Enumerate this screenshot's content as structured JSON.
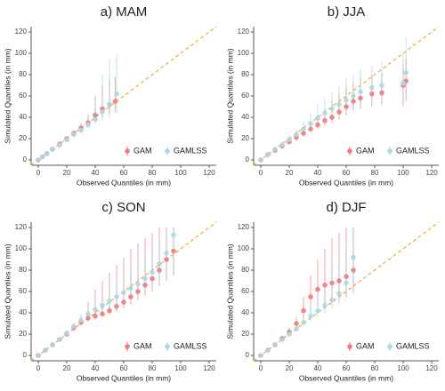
{
  "chart_data": [
    {
      "type": "scatter",
      "title": "a) MAM",
      "xlabel": "Observed Quantiles (in mm)",
      "ylabel": "Simulated Quantiles (in mm)",
      "xlim": [
        -5,
        125
      ],
      "ylim": [
        -5,
        125
      ],
      "xticks": [
        0,
        20,
        40,
        60,
        80,
        100,
        120
      ],
      "yticks": [
        0,
        20,
        40,
        60,
        80,
        100,
        120
      ],
      "diagonal": true,
      "diagonal_color": "#f5b041",
      "legend": "bottom-right",
      "series": [
        {
          "name": "GAM",
          "color": "#f07b7f",
          "x": [
            0,
            3,
            6,
            10,
            15,
            20,
            25,
            30,
            35,
            40,
            45,
            50,
            54
          ],
          "values": [
            0,
            3,
            6,
            10,
            15,
            20,
            25,
            30,
            35,
            42,
            48,
            52,
            55
          ],
          "lower": [
            0,
            2,
            5,
            9,
            14,
            19,
            23,
            27,
            31,
            36,
            40,
            43,
            45
          ],
          "upper": [
            1,
            4,
            8,
            12,
            17,
            22,
            28,
            34,
            42,
            60,
            70,
            75,
            78
          ]
        },
        {
          "name": "GAMLSS",
          "color": "#a8d8e6",
          "x": [
            0,
            3,
            6,
            10,
            15,
            20,
            25,
            30,
            35,
            40,
            45,
            50,
            55
          ],
          "values": [
            0,
            3,
            6,
            10,
            14,
            19,
            24,
            28,
            33,
            38,
            45,
            52,
            62
          ],
          "lower": [
            0,
            2,
            5,
            8,
            12,
            17,
            21,
            25,
            29,
            33,
            37,
            40,
            44
          ],
          "upper": [
            1,
            4,
            8,
            12,
            17,
            22,
            28,
            35,
            44,
            58,
            80,
            95,
            98
          ]
        }
      ]
    },
    {
      "type": "scatter",
      "title": "b) JJA",
      "xlabel": "Observed Quantiles (in mm)",
      "ylabel": "Simulated Quantiles (in mm)",
      "xlim": [
        -5,
        125
      ],
      "ylim": [
        -5,
        125
      ],
      "xticks": [
        0,
        20,
        40,
        60,
        80,
        100,
        120
      ],
      "yticks": [
        0,
        20,
        40,
        60,
        80,
        100,
        120
      ],
      "diagonal": true,
      "diagonal_color": "#f5b041",
      "legend": "bottom-right",
      "series": [
        {
          "name": "GAM",
          "color": "#f07b7f",
          "x": [
            0,
            5,
            10,
            15,
            20,
            25,
            30,
            35,
            40,
            45,
            50,
            55,
            60,
            65,
            70,
            78,
            85,
            100,
            102
          ],
          "values": [
            0,
            5,
            9,
            13,
            17,
            21,
            25,
            29,
            33,
            37,
            40,
            45,
            50,
            55,
            58,
            62,
            63,
            70,
            74
          ],
          "lower": [
            0,
            4,
            8,
            11,
            15,
            19,
            22,
            26,
            29,
            32,
            35,
            38,
            42,
            46,
            48,
            50,
            52,
            50,
            55
          ],
          "upper": [
            1,
            6,
            11,
            15,
            20,
            25,
            30,
            36,
            42,
            48,
            55,
            62,
            68,
            72,
            78,
            80,
            82,
            90,
            95
          ]
        },
        {
          "name": "GAMLSS",
          "color": "#a8d8e6",
          "x": [
            0,
            5,
            10,
            15,
            20,
            25,
            30,
            35,
            40,
            45,
            50,
            55,
            60,
            65,
            70,
            78,
            85,
            100,
            102
          ],
          "values": [
            0,
            5,
            10,
            14,
            19,
            24,
            29,
            34,
            39,
            44,
            48,
            52,
            56,
            60,
            64,
            68,
            70,
            72,
            82
          ],
          "lower": [
            0,
            4,
            9,
            12,
            17,
            21,
            25,
            29,
            33,
            37,
            40,
            42,
            45,
            48,
            50,
            52,
            54,
            55,
            60
          ],
          "upper": [
            1,
            7,
            12,
            17,
            23,
            29,
            36,
            44,
            52,
            58,
            64,
            70,
            76,
            80,
            85,
            88,
            92,
            100,
            115
          ]
        }
      ]
    },
    {
      "type": "scatter",
      "title": "c) SON",
      "xlabel": "Observed Quantiles (in mm)",
      "ylabel": "Simulated Quantiles (in mm)",
      "xlim": [
        -5,
        125
      ],
      "ylim": [
        -5,
        125
      ],
      "xticks": [
        0,
        20,
        40,
        60,
        80,
        100,
        120
      ],
      "yticks": [
        0,
        20,
        40,
        60,
        80,
        100,
        120
      ],
      "diagonal": true,
      "diagonal_color": "#f5b041",
      "legend": "bottom-right",
      "series": [
        {
          "name": "GAM",
          "color": "#f07b7f",
          "x": [
            0,
            5,
            10,
            15,
            20,
            25,
            30,
            35,
            40,
            45,
            50,
            55,
            60,
            65,
            70,
            75,
            80,
            85,
            90,
            95
          ],
          "values": [
            0,
            5,
            10,
            15,
            20,
            26,
            31,
            35,
            37,
            39,
            42,
            46,
            50,
            55,
            60,
            66,
            72,
            80,
            90,
            98
          ],
          "lower": [
            0,
            4,
            9,
            14,
            18,
            23,
            28,
            32,
            34,
            36,
            38,
            41,
            44,
            48,
            52,
            56,
            60,
            65,
            70,
            75
          ],
          "upper": [
            1,
            6,
            12,
            17,
            22,
            30,
            38,
            50,
            62,
            70,
            78,
            85,
            92,
            100,
            105,
            110,
            115,
            120,
            120,
            120
          ]
        },
        {
          "name": "GAMLSS",
          "color": "#a8d8e6",
          "x": [
            0,
            5,
            10,
            15,
            20,
            25,
            30,
            35,
            40,
            45,
            50,
            55,
            60,
            65,
            70,
            75,
            80,
            85,
            90,
            95
          ],
          "values": [
            0,
            5,
            10,
            15,
            21,
            27,
            33,
            39,
            43,
            47,
            51,
            55,
            59,
            63,
            67,
            72,
            78,
            86,
            96,
            113
          ],
          "lower": [
            0,
            4,
            9,
            13,
            18,
            24,
            30,
            35,
            38,
            41,
            44,
            47,
            50,
            53,
            56,
            60,
            64,
            68,
            72,
            80
          ],
          "upper": [
            1,
            7,
            12,
            17,
            24,
            31,
            38,
            46,
            52,
            58,
            64,
            70,
            76,
            82,
            88,
            94,
            100,
            108,
            115,
            120
          ]
        }
      ]
    },
    {
      "type": "scatter",
      "title": "d) DJF",
      "xlabel": "Observed Quantiles (in mm)",
      "ylabel": "Simulated Quantiles (in mm)",
      "xlim": [
        -5,
        125
      ],
      "ylim": [
        -5,
        125
      ],
      "xticks": [
        0,
        20,
        40,
        60,
        80,
        100,
        120
      ],
      "yticks": [
        0,
        20,
        40,
        60,
        80,
        100,
        120
      ],
      "diagonal": true,
      "diagonal_color": "#f5b041",
      "legend": "bottom-right",
      "series": [
        {
          "name": "GAM",
          "color": "#f07b7f",
          "x": [
            0,
            5,
            10,
            15,
            20,
            25,
            30,
            35,
            40,
            45,
            50,
            55,
            60,
            65
          ],
          "values": [
            0,
            5,
            10,
            16,
            22,
            30,
            42,
            55,
            62,
            66,
            68,
            70,
            74,
            80
          ],
          "lower": [
            0,
            4,
            9,
            14,
            19,
            25,
            33,
            40,
            45,
            48,
            50,
            52,
            55,
            60
          ],
          "upper": [
            1,
            6,
            12,
            18,
            26,
            36,
            55,
            75,
            90,
            100,
            110,
            115,
            120,
            120
          ]
        },
        {
          "name": "GAMLSS",
          "color": "#a8d8e6",
          "x": [
            0,
            5,
            10,
            15,
            20,
            25,
            30,
            35,
            40,
            45,
            50,
            55,
            60,
            65
          ],
          "values": [
            0,
            5,
            10,
            15,
            20,
            25,
            31,
            37,
            42,
            47,
            52,
            58,
            68,
            92
          ],
          "lower": [
            0,
            4,
            9,
            13,
            18,
            22,
            27,
            32,
            36,
            40,
            44,
            48,
            52,
            58
          ],
          "upper": [
            1,
            6,
            12,
            17,
            23,
            29,
            36,
            46,
            56,
            66,
            78,
            90,
            105,
            120
          ]
        }
      ]
    }
  ]
}
